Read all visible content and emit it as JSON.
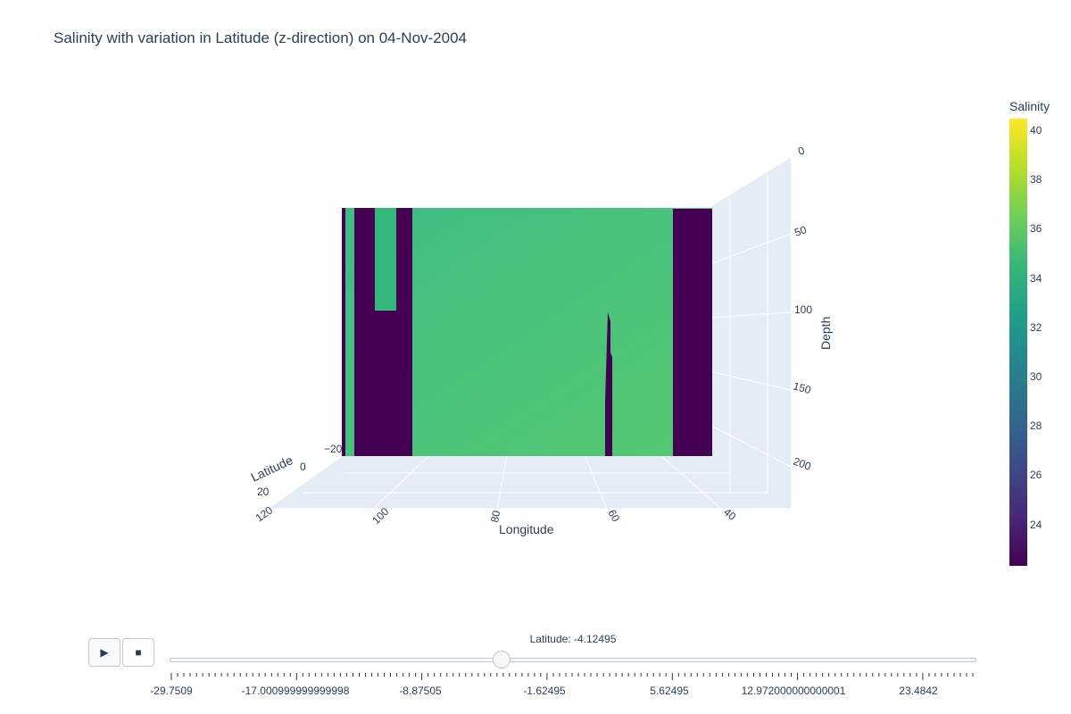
{
  "title": "Salinity with variation in Latitude (z-direction) on 04-Nov-2004",
  "chart_data": {
    "type": "heatmap",
    "subtype": "3d-surface-slice",
    "title": "Salinity with variation in Latitude (z-direction) on 04-Nov-2004",
    "colorscale": "Viridis",
    "colorbar": {
      "title": "Salinity",
      "range": [
        22.5,
        40.5
      ],
      "ticks": [
        "40",
        "38",
        "36",
        "34",
        "32",
        "30",
        "28",
        "26",
        "24"
      ]
    },
    "scene": {
      "xaxis": {
        "title": "Longitude",
        "ticks": [
          "120",
          "100",
          "80",
          "60",
          "40"
        ]
      },
      "yaxis": {
        "title": "Latitude",
        "ticks": [
          "−20",
          "0",
          "20"
        ]
      },
      "zaxis": {
        "title": "Depth",
        "ticks": [
          "0",
          "50",
          "100",
          "150",
          "200"
        ],
        "reversed": true
      }
    },
    "slice_latitude": -4.12495,
    "salinity_profile": [
      {
        "lon_from": 120,
        "lon_to": 119.6,
        "salinity": 23,
        "depth_to": 200
      },
      {
        "lon_from": 119.6,
        "lon_to": 118.5,
        "salinity": 34.5,
        "depth_to": 200
      },
      {
        "lon_from": 118.5,
        "lon_to": 114.5,
        "salinity": 23,
        "depth_to": 200
      },
      {
        "lon_from": 114.5,
        "lon_to": 112,
        "salinity": 33.5,
        "depth_to": 85
      },
      {
        "lon_from": 112,
        "lon_to": 110,
        "salinity": 23,
        "depth_to": 200
      },
      {
        "lon_from": 110,
        "lon_to": 58,
        "salinity": 35.3,
        "depth_to": 200
      },
      {
        "lon_from": 58,
        "lon_to": 48,
        "salinity": 35.8,
        "depth_to": 200
      },
      {
        "lon_from": 48,
        "lon_to": 42,
        "salinity": 23,
        "depth_to": 200
      }
    ]
  },
  "slider": {
    "current_value_label": "Latitude: -4.12495",
    "current_value": -4.12495,
    "range": [
      -29.7509,
      29.7509
    ],
    "step_labels": [
      "-29.7509",
      "-17.000999999999998",
      "-8.87505",
      "-1.62495",
      "5.62495",
      "12.972000000000001",
      "23.4842"
    ]
  },
  "buttons": {
    "play": "▶",
    "stop": "■"
  }
}
